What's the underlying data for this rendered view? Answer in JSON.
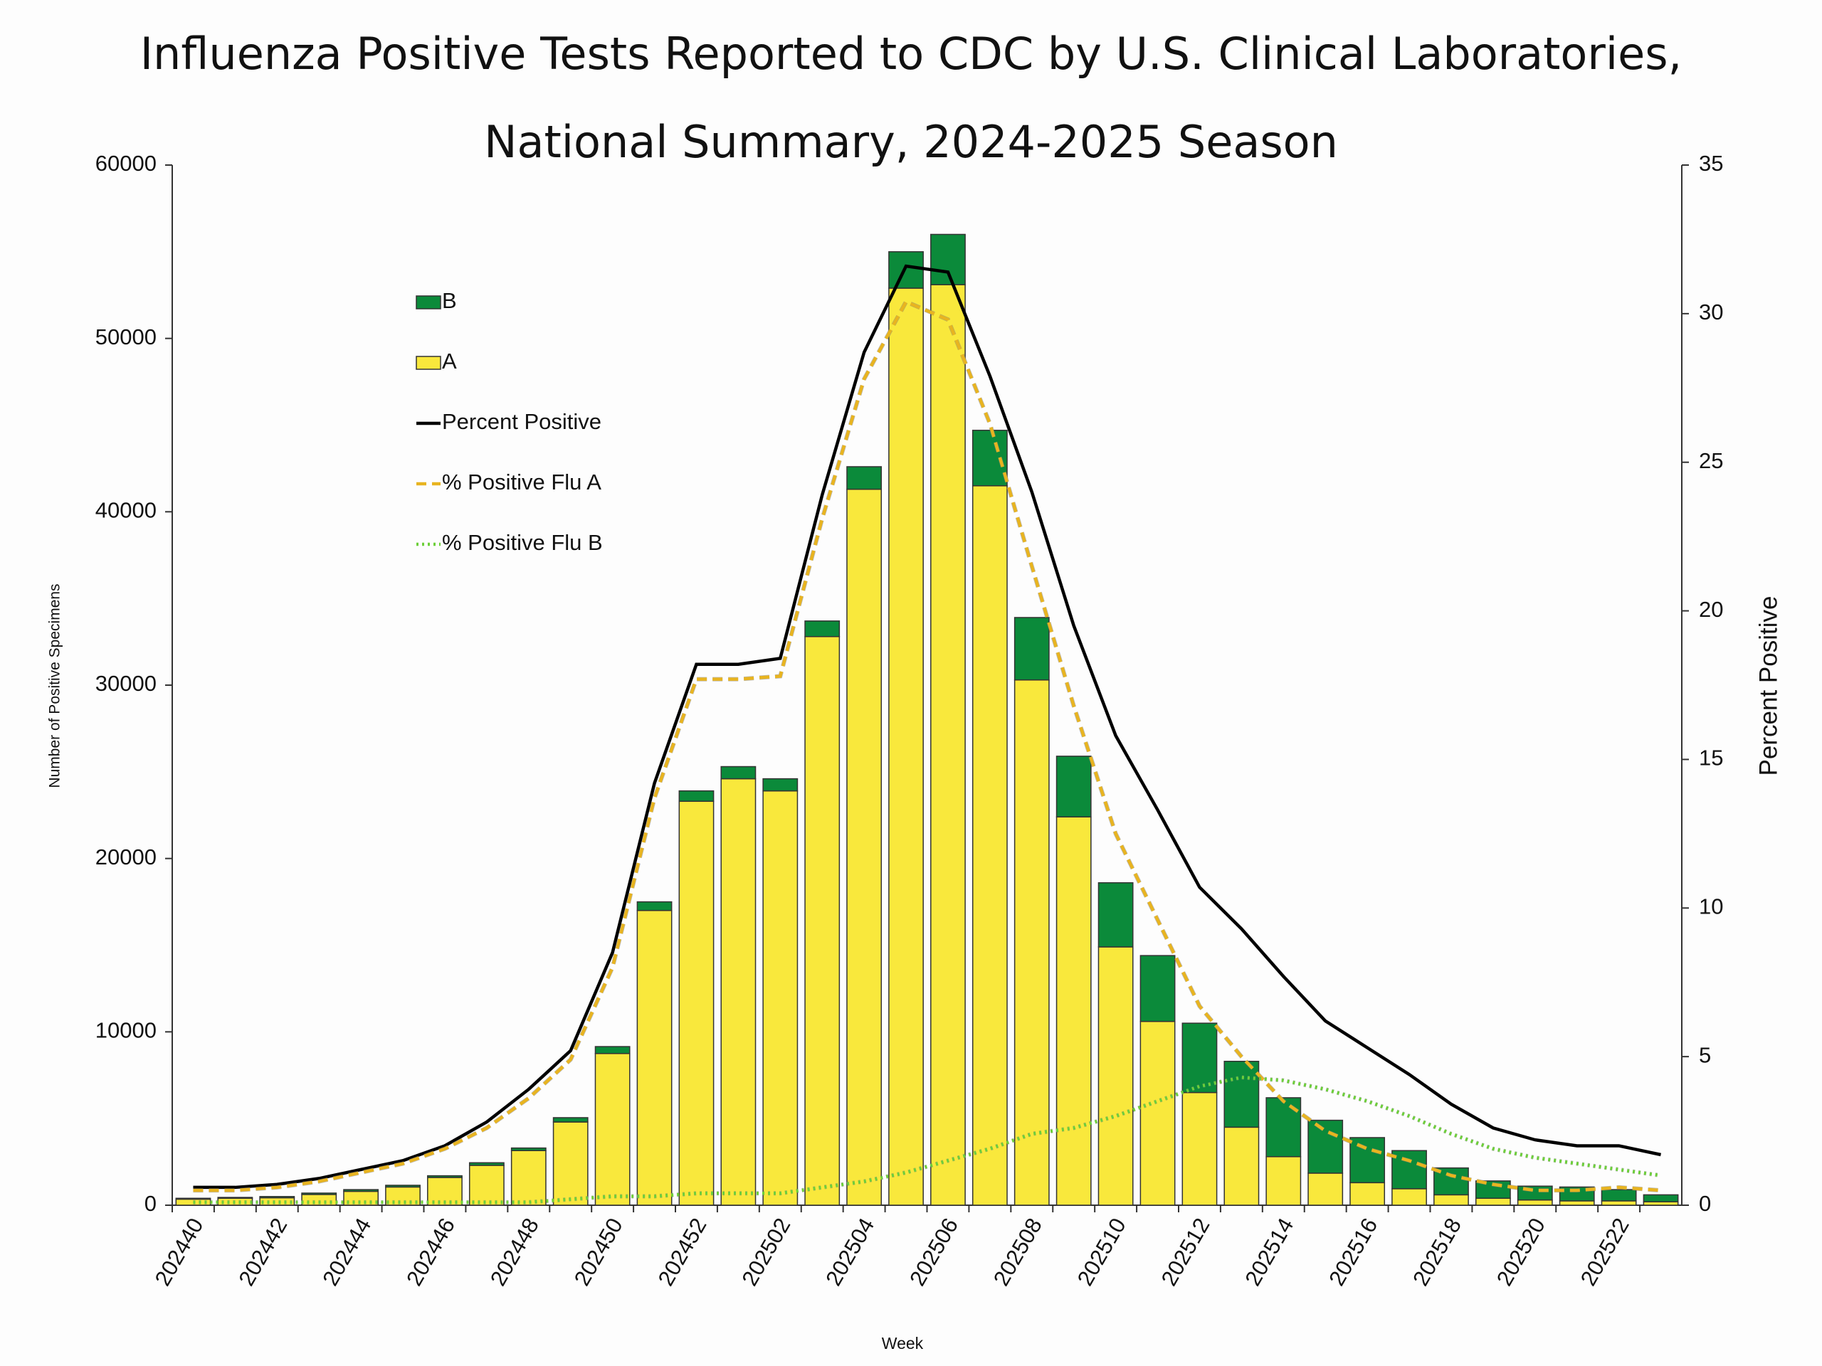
{
  "chart_data": {
    "type": "bar",
    "title": "Influenza Positive Tests Reported to CDC by U.S. Clinical Laboratories,\nNational Summary, 2024-2025 Season",
    "x_label": "Week",
    "y_label": "Number of Positive Specimens",
    "y2_label": "Percent Positive",
    "stacked": true,
    "legend_position": "upper left",
    "categories": [
      "202440",
      null,
      "202442",
      null,
      "202444",
      null,
      "202446",
      null,
      "202448",
      null,
      "202450",
      null,
      "202452",
      null,
      "202502",
      null,
      "202504",
      null,
      "202506",
      null,
      "202508",
      null,
      "202510",
      null,
      "202512",
      null,
      "202514",
      null,
      "202516",
      null,
      "202518",
      null,
      "202520",
      null,
      "202522",
      null
    ],
    "ylim": [
      0,
      60000
    ],
    "yticks": [
      0,
      10000,
      20000,
      30000,
      40000,
      50000,
      60000
    ],
    "y2lim": [
      0,
      35
    ],
    "y2ticks": [
      0,
      5,
      10,
      15,
      20,
      25,
      30,
      35
    ],
    "series": [
      {
        "name": "A",
        "type": "bar",
        "color": "#f9e83c",
        "values": [
          350,
          400,
          430,
          620,
          800,
          1050,
          1600,
          2300,
          3150,
          4800,
          8750,
          17000,
          23300,
          24600,
          23900,
          32800,
          41300,
          52900,
          53100,
          41500,
          30300,
          22400,
          14900,
          10600,
          6500,
          4500,
          2800,
          1850,
          1300,
          950,
          600,
          400,
          300,
          250,
          250,
          200
        ]
      },
      {
        "name": "B",
        "type": "bar",
        "color": "#0b8a3a",
        "values": [
          50,
          50,
          70,
          80,
          100,
          100,
          100,
          150,
          150,
          250,
          400,
          500,
          600,
          700,
          700,
          900,
          1300,
          2100,
          2900,
          3200,
          3600,
          3500,
          3700,
          3800,
          4000,
          3800,
          3400,
          3050,
          2600,
          2200,
          1550,
          1000,
          800,
          800,
          650,
          400
        ]
      },
      {
        "name": "Percent Positive",
        "type": "line",
        "axis": "y2",
        "color": "#000000",
        "line_style": "solid",
        "values": [
          0.6,
          0.6,
          0.7,
          0.9,
          1.2,
          1.5,
          2.0,
          2.8,
          3.9,
          5.2,
          8.5,
          14.2,
          18.2,
          18.2,
          18.4,
          23.9,
          28.7,
          31.6,
          31.4,
          27.9,
          24.0,
          19.5,
          15.8,
          13.3,
          10.7,
          9.3,
          7.7,
          6.2,
          5.3,
          4.4,
          3.4,
          2.6,
          2.2,
          2.0,
          2.0,
          1.7
        ]
      },
      {
        "name": "% Positive Flu A",
        "type": "line",
        "axis": "y2",
        "color": "#e8b420",
        "line_style": "dashed",
        "values": [
          0.5,
          0.5,
          0.6,
          0.8,
          1.1,
          1.4,
          1.9,
          2.6,
          3.6,
          4.9,
          8.0,
          13.7,
          17.7,
          17.7,
          17.8,
          23.1,
          27.8,
          30.4,
          29.8,
          26.3,
          21.5,
          16.8,
          12.5,
          9.6,
          6.7,
          5.0,
          3.5,
          2.5,
          1.9,
          1.5,
          1.0,
          0.7,
          0.5,
          0.5,
          0.6,
          0.5
        ]
      },
      {
        "name": "% Positive Flu B",
        "type": "line",
        "axis": "y2",
        "color": "#6dcf3a",
        "line_style": "dotted",
        "values": [
          0.1,
          0.1,
          0.1,
          0.1,
          0.1,
          0.1,
          0.1,
          0.1,
          0.1,
          0.2,
          0.3,
          0.3,
          0.4,
          0.4,
          0.4,
          0.6,
          0.8,
          1.1,
          1.5,
          1.9,
          2.4,
          2.6,
          3.0,
          3.5,
          4.0,
          4.3,
          4.2,
          3.9,
          3.5,
          3.0,
          2.4,
          1.9,
          1.6,
          1.4,
          1.2,
          1.0
        ]
      }
    ]
  }
}
